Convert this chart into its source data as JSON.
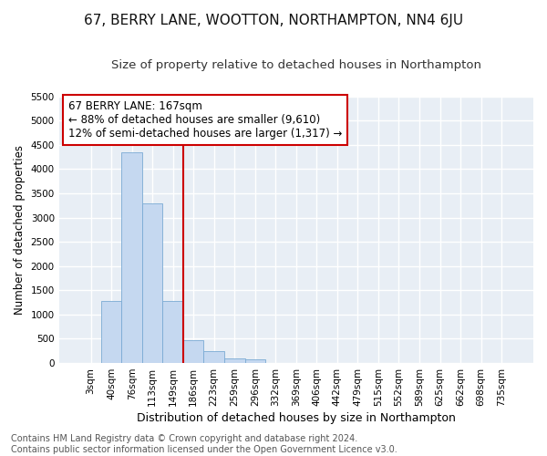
{
  "title": "67, BERRY LANE, WOOTTON, NORTHAMPTON, NN4 6JU",
  "subtitle": "Size of property relative to detached houses in Northampton",
  "xlabel": "Distribution of detached houses by size in Northampton",
  "ylabel": "Number of detached properties",
  "categories": [
    "3sqm",
    "40sqm",
    "76sqm",
    "113sqm",
    "149sqm",
    "186sqm",
    "223sqm",
    "259sqm",
    "296sqm",
    "332sqm",
    "369sqm",
    "406sqm",
    "442sqm",
    "479sqm",
    "515sqm",
    "552sqm",
    "589sqm",
    "625sqm",
    "662sqm",
    "698sqm",
    "735sqm"
  ],
  "values": [
    0,
    1280,
    4350,
    3300,
    1280,
    480,
    240,
    100,
    70,
    0,
    0,
    0,
    0,
    0,
    0,
    0,
    0,
    0,
    0,
    0,
    0
  ],
  "bar_color": "#c5d8f0",
  "bar_edge_color": "#7aaad4",
  "vline_x_index": 4.5,
  "vline_color": "#cc0000",
  "annotation_text": "67 BERRY LANE: 167sqm\n← 88% of detached houses are smaller (9,610)\n12% of semi-detached houses are larger (1,317) →",
  "annotation_box_color": "#ffffff",
  "annotation_box_edge_color": "#cc0000",
  "ylim": [
    0,
    5500
  ],
  "yticks": [
    0,
    500,
    1000,
    1500,
    2000,
    2500,
    3000,
    3500,
    4000,
    4500,
    5000,
    5500
  ],
  "background_color": "#e8eef5",
  "grid_color": "#ffffff",
  "footer_text": "Contains HM Land Registry data © Crown copyright and database right 2024.\nContains public sector information licensed under the Open Government Licence v3.0.",
  "title_fontsize": 11,
  "subtitle_fontsize": 9.5,
  "xlabel_fontsize": 9,
  "ylabel_fontsize": 8.5,
  "tick_fontsize": 7.5,
  "annotation_fontsize": 8.5,
  "footer_fontsize": 7
}
